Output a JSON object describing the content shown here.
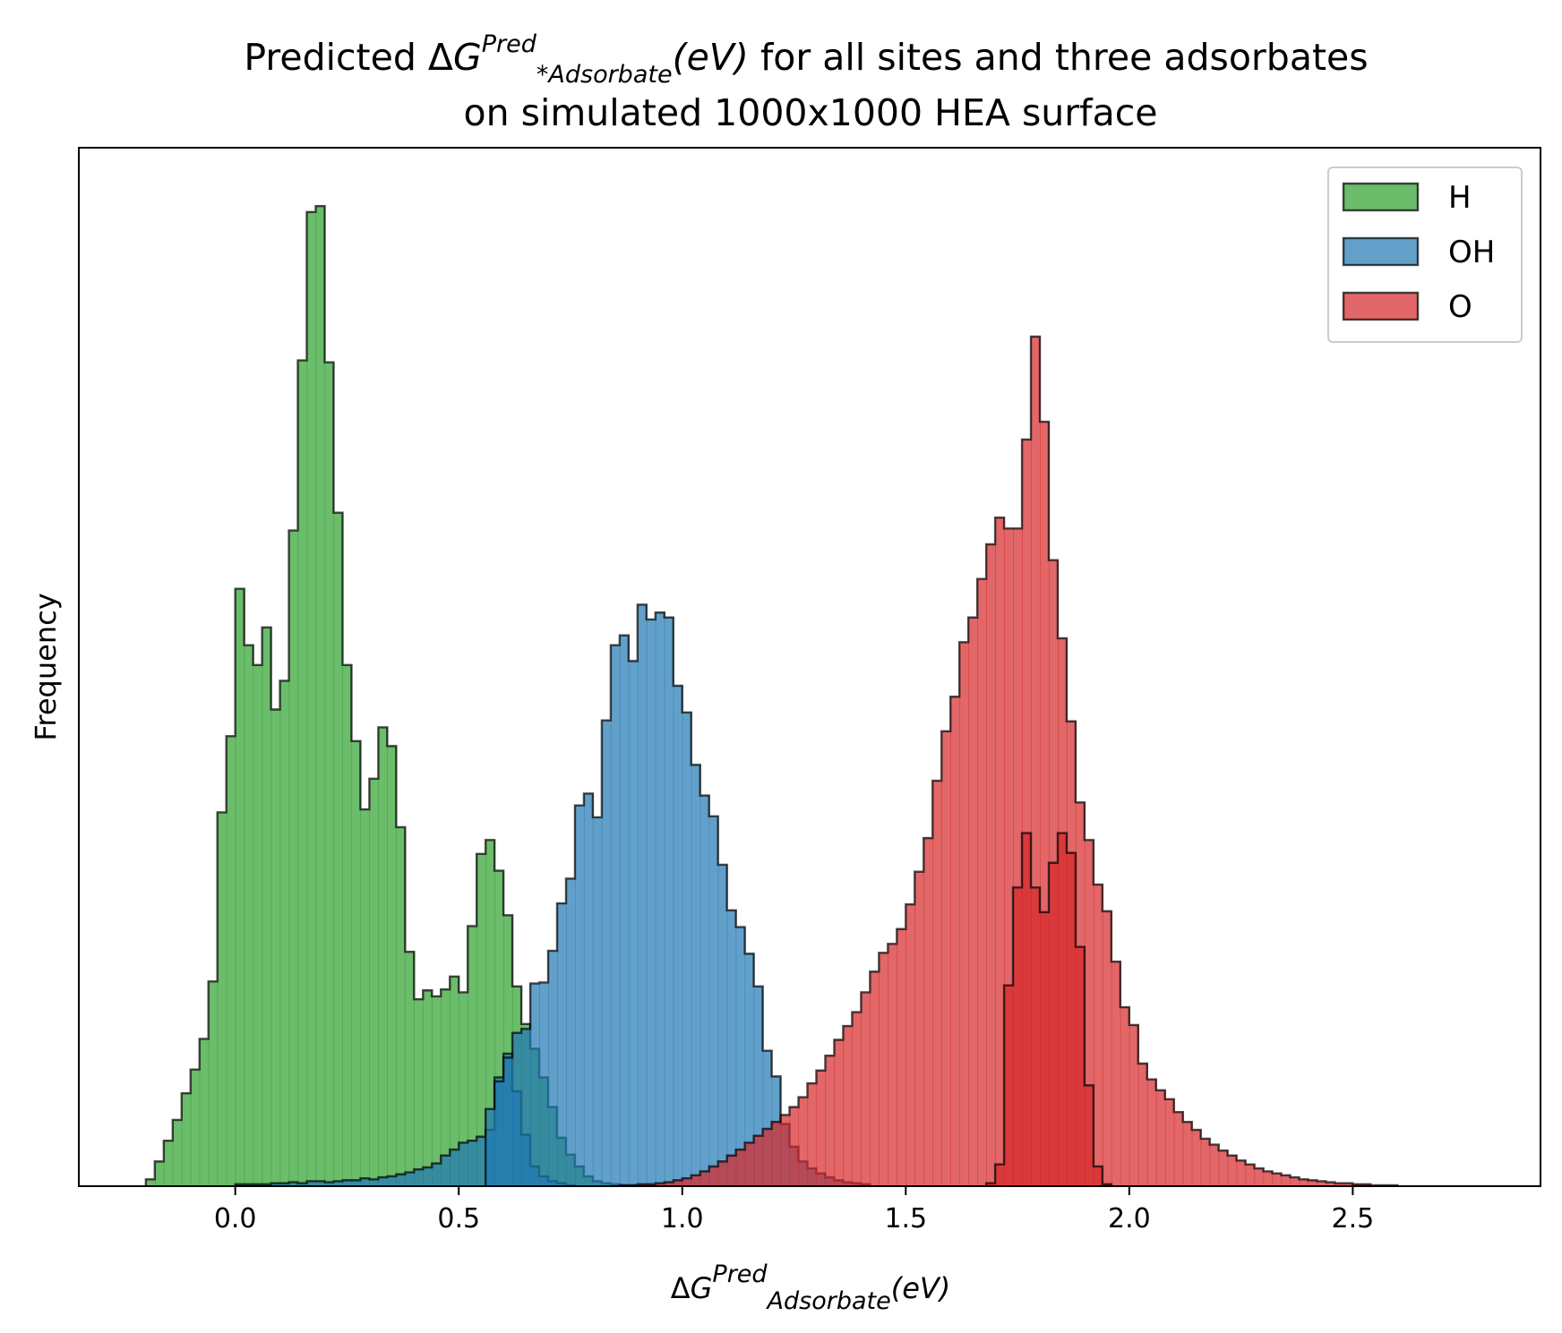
{
  "chart_data": {
    "type": "bar",
    "histogram": true,
    "title_parts": {
      "prefix": "Predicted ",
      "delta": "Δ",
      "g": "G",
      "superscript": "Pred",
      "subscript": "*Adsorbate",
      "unit": "(eV)",
      "suffix": " for all sites and three adsorbates",
      "line2": "on simulated 1000x1000 HEA surface"
    },
    "xlabel_parts": {
      "delta": "Δ",
      "g": "G",
      "superscript": "Pred",
      "subscript": "Adsorbate",
      "unit": "(eV)"
    },
    "ylabel": "Frequency",
    "xlim": [
      -0.35,
      2.92
    ],
    "ylim": [
      0,
      1.05
    ],
    "xticks": [
      0.0,
      0.5,
      1.0,
      1.5,
      2.0,
      2.5
    ],
    "xtick_labels": [
      "0.0",
      "0.5",
      "1.0",
      "1.5",
      "2.0",
      "2.5"
    ],
    "yticks": [],
    "grid": false,
    "legend_position": "top-right",
    "bin_width": 0.02,
    "series": [
      {
        "name": "H",
        "color": "#2ca02c",
        "x_start": -0.2,
        "values": [
          0.007,
          0.025,
          0.046,
          0.067,
          0.094,
          0.118,
          0.149,
          0.207,
          0.378,
          0.455,
          0.604,
          0.547,
          0.527,
          0.565,
          0.482,
          0.511,
          0.663,
          0.835,
          0.985,
          0.991,
          0.833,
          0.681,
          0.527,
          0.45,
          0.381,
          0.412,
          0.464,
          0.445,
          0.363,
          0.237,
          0.189,
          0.198,
          0.192,
          0.199,
          0.212,
          0.196,
          0.263,
          0.336,
          0.35,
          0.319,
          0.274,
          0.202,
          0.164,
          0.139,
          0.11,
          0.08,
          0.049,
          0.032,
          0.02,
          0.01,
          0.005,
          0.003,
          0.002,
          0.001,
          0.001
        ]
      },
      {
        "name": "OH",
        "color": "#1f77b4",
        "x_start": 0.0,
        "values": [
          0.002,
          0.002,
          0.002,
          0.002,
          0.003,
          0.003,
          0.004,
          0.003,
          0.005,
          0.005,
          0.004,
          0.005,
          0.006,
          0.006,
          0.008,
          0.007,
          0.009,
          0.01,
          0.012,
          0.014,
          0.017,
          0.019,
          0.023,
          0.031,
          0.037,
          0.044,
          0.046,
          0.05,
          0.057,
          0.11,
          0.134,
          0.096,
          0.052,
          0.02,
          0.01,
          0.005,
          0.003,
          0.001
        ]
      },
      {
        "name": "OH",
        "color": "#1f77b4",
        "x_start": 0.56,
        "values": [
          0.078,
          0.106,
          0.13,
          0.155,
          0.159,
          0.205,
          0.206,
          0.238,
          0.286,
          0.311,
          0.385,
          0.397,
          0.373,
          0.471,
          0.547,
          0.557,
          0.531,
          0.588,
          0.573,
          0.58,
          0.575,
          0.506,
          0.479,
          0.426,
          0.395,
          0.374,
          0.325,
          0.279,
          0.262,
          0.235,
          0.202,
          0.137,
          0.111,
          0.063,
          0.04,
          0.025,
          0.018,
          0.013,
          0.009,
          0.006,
          0.004,
          0.003,
          0.002
        ]
      },
      {
        "name": "O",
        "color": "#d62728",
        "x_start": 0.86,
        "values": [
          0.001,
          0.001,
          0.002,
          0.002,
          0.003,
          0.004,
          0.006,
          0.008,
          0.011,
          0.015,
          0.02,
          0.025,
          0.031,
          0.037,
          0.044,
          0.051,
          0.058,
          0.065,
          0.072,
          0.08,
          0.09,
          0.104,
          0.117,
          0.132,
          0.148,
          0.162,
          0.176,
          0.196,
          0.217,
          0.236,
          0.245,
          0.26,
          0.285,
          0.318,
          0.352,
          0.41,
          0.46,
          0.495,
          0.55,
          0.575,
          0.614,
          0.649,
          0.676,
          0.665,
          0.665,
          0.755,
          0.859,
          0.773,
          0.633,
          0.554,
          0.47,
          0.388,
          0.35,
          0.305,
          0.278,
          0.227,
          0.181,
          0.163,
          0.124,
          0.108,
          0.097,
          0.088,
          0.075,
          0.065,
          0.057,
          0.048,
          0.042,
          0.036,
          0.031,
          0.026,
          0.022,
          0.018,
          0.015,
          0.013,
          0.011,
          0.009,
          0.007,
          0.006,
          0.005,
          0.004,
          0.003,
          0.003,
          0.002,
          0.002,
          0.001,
          0.001,
          0.001
        ]
      },
      {
        "name": "O",
        "color": "#d62728",
        "x_start": 1.68,
        "values": [
          0.003,
          0.022,
          0.203,
          0.302,
          0.357,
          0.302,
          0.277,
          0.327,
          0.357,
          0.337,
          0.242,
          0.102,
          0.02,
          0.002
        ]
      }
    ]
  }
}
